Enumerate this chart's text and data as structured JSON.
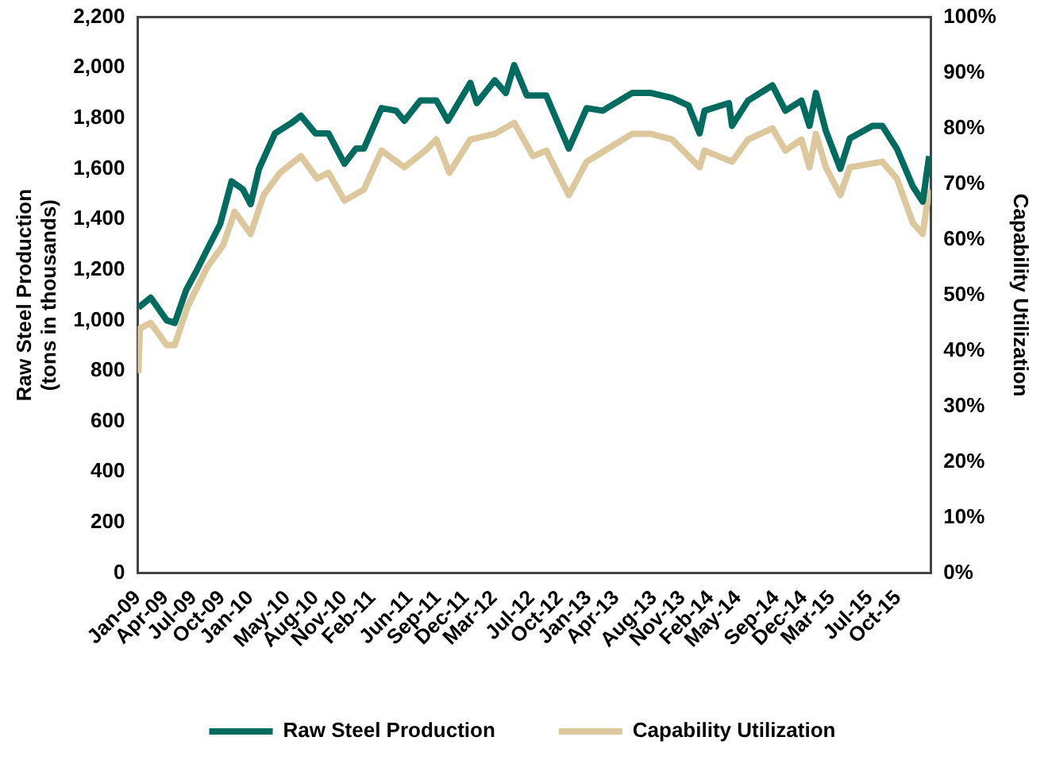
{
  "chart_data": {
    "type": "line",
    "ylabel": "Raw Steel Production (tons in thousands)",
    "y2label": "Capability Utilization",
    "xlim": [
      "2009-01-01",
      "2016-01-15"
    ],
    "xticks": [
      {
        "value": "2009-01",
        "label": "Jan-09"
      },
      {
        "value": "2009-04",
        "label": "Apr-09"
      },
      {
        "value": "2009-07",
        "label": "Jul-09"
      },
      {
        "value": "2009-10",
        "label": "Oct-09"
      },
      {
        "value": "2010-01",
        "label": "Jan-10"
      },
      {
        "value": "2010-05",
        "label": "May-10"
      },
      {
        "value": "2010-08",
        "label": "Aug-10"
      },
      {
        "value": "2010-11",
        "label": "Nov-10"
      },
      {
        "value": "2011-02",
        "label": "Feb-11"
      },
      {
        "value": "2011-06",
        "label": "Jun-11"
      },
      {
        "value": "2011-09",
        "label": "Sep-11"
      },
      {
        "value": "2011-12",
        "label": "Dec-11"
      },
      {
        "value": "2012-03",
        "label": "Mar-12"
      },
      {
        "value": "2012-07",
        "label": "Jul-12"
      },
      {
        "value": "2012-10",
        "label": "Oct-12"
      },
      {
        "value": "2013-01",
        "label": "Jan-13"
      },
      {
        "value": "2013-04",
        "label": "Apr-13"
      },
      {
        "value": "2013-08",
        "label": "Aug-13"
      },
      {
        "value": "2013-11",
        "label": "Nov-13"
      },
      {
        "value": "2014-02",
        "label": "Feb-14"
      },
      {
        "value": "2014-05",
        "label": "May-14"
      },
      {
        "value": "2014-09",
        "label": "Sep-14"
      },
      {
        "value": "2014-12",
        "label": "Dec-14"
      },
      {
        "value": "2015-03",
        "label": "Mar-15"
      },
      {
        "value": "2015-07",
        "label": "Jul-15"
      },
      {
        "value": "2015-10",
        "label": "Oct-15"
      }
    ],
    "ylim": [
      0,
      2200
    ],
    "yticks": [
      0,
      200,
      400,
      600,
      800,
      {
        "value": 1000,
        "label": "1,000"
      },
      {
        "value": 1200,
        "label": "1,200"
      },
      {
        "value": 1400,
        "label": "1,400"
      },
      {
        "value": 1600,
        "label": "1,600"
      },
      {
        "value": 1800,
        "label": "1,800"
      },
      {
        "value": 2000,
        "label": "2,000"
      },
      {
        "value": 2200,
        "label": "2,200"
      }
    ],
    "y2lim": [
      0,
      100
    ],
    "y2ticks": [
      {
        "value": 0,
        "label": "0%"
      },
      {
        "value": 10,
        "label": "10%"
      },
      {
        "value": 20,
        "label": "20%"
      },
      {
        "value": 30,
        "label": "30%"
      },
      {
        "value": 40,
        "label": "40%"
      },
      {
        "value": 50,
        "label": "50%"
      },
      {
        "value": 60,
        "label": "60%"
      },
      {
        "value": 70,
        "label": "70%"
      },
      {
        "value": 80,
        "label": "80%"
      },
      {
        "value": 90,
        "label": "90%"
      },
      {
        "value": 100,
        "label": "100%"
      }
    ],
    "grid": false,
    "legend": "bottom",
    "marker": "none",
    "line_style": "solid",
    "series": [
      {
        "name": "Raw Steel Production",
        "color": "#006b5f",
        "x": [
          "2009-01-03",
          "2009-02-12",
          "2009-04-05",
          "2009-05-01",
          "2009-06-07",
          "2009-07-08",
          "2009-08-14",
          "2009-09-25",
          "2009-11-01",
          "2009-12-07",
          "2010-01-02",
          "2010-01-29",
          "2010-03-22",
          "2010-05-13",
          "2010-06-14",
          "2010-07-31",
          "2010-09-11",
          "2010-11-02",
          "2010-12-09",
          "2011-01-04",
          "2011-03-02",
          "2011-04-18",
          "2011-05-15",
          "2011-07-06",
          "2011-08-27",
          "2011-10-03",
          "2011-12-15",
          "2012-01-05",
          "2012-03-03",
          "2012-04-08",
          "2012-05-05",
          "2012-06-15",
          "2012-08-17",
          "2012-10-29",
          "2012-12-26",
          "2013-02-16",
          "2013-05-22",
          "2013-07-23",
          "2013-09-29",
          "2013-11-21",
          "2013-12-27",
          "2014-01-12",
          "2014-04-01",
          "2014-04-11",
          "2014-06-02",
          "2014-08-20",
          "2014-10-01",
          "2014-11-22",
          "2014-12-18",
          "2015-01-08",
          "2015-02-09",
          "2015-03-28",
          "2015-04-28",
          "2015-07-10",
          "2015-08-11",
          "2015-09-27",
          "2015-11-18",
          "2015-12-20",
          "2016-01-10"
        ],
        "values": [
          1050,
          1090,
          1000,
          990,
          1120,
          1190,
          1280,
          1380,
          1550,
          1520,
          1460,
          1600,
          1740,
          1780,
          1810,
          1740,
          1740,
          1620,
          1680,
          1680,
          1840,
          1830,
          1790,
          1870,
          1870,
          1790,
          1940,
          1860,
          1950,
          1900,
          2010,
          1890,
          1890,
          1680,
          1840,
          1830,
          1900,
          1900,
          1880,
          1850,
          1740,
          1830,
          1860,
          1770,
          1870,
          1930,
          1830,
          1870,
          1770,
          1900,
          1750,
          1600,
          1720,
          1770,
          1770,
          1680,
          1530,
          1470,
          1650
        ]
      },
      {
        "name": "Capability Utilization",
        "color": "#dcc89c",
        "axis": "y2",
        "x": [
          "2009-01-03",
          "2009-01-08",
          "2009-02-12",
          "2009-04-05",
          "2009-05-01",
          "2009-06-12",
          "2009-08-14",
          "2009-10-05",
          "2009-11-11",
          "2010-01-02",
          "2010-02-13",
          "2010-04-07",
          "2010-06-14",
          "2010-08-05",
          "2010-09-11",
          "2010-11-02",
          "2011-01-04",
          "2011-03-02",
          "2011-05-15",
          "2011-07-22",
          "2011-08-27",
          "2011-10-08",
          "2011-12-15",
          "2012-03-03",
          "2012-05-05",
          "2012-07-05",
          "2012-08-17",
          "2012-10-29",
          "2012-12-26",
          "2013-05-22",
          "2013-07-23",
          "2013-09-29",
          "2013-12-27",
          "2014-01-12",
          "2014-04-11",
          "2014-06-02",
          "2014-08-20",
          "2014-10-01",
          "2014-11-22",
          "2014-12-18",
          "2015-01-08",
          "2015-02-09",
          "2015-03-28",
          "2015-04-28",
          "2015-08-11",
          "2015-09-27",
          "2015-11-18",
          "2015-12-20",
          "2016-01-10"
        ],
        "values": [
          36,
          44,
          45,
          41,
          41,
          48,
          55,
          59,
          65,
          61,
          68,
          72,
          75,
          71,
          72,
          67,
          69,
          76,
          73,
          76,
          78,
          72,
          78,
          79,
          81,
          75,
          76,
          68,
          74,
          79,
          79,
          78,
          73,
          76,
          74,
          78,
          80,
          76,
          78,
          73,
          79,
          73,
          68,
          73,
          74,
          71,
          63,
          61,
          69
        ]
      }
    ]
  }
}
